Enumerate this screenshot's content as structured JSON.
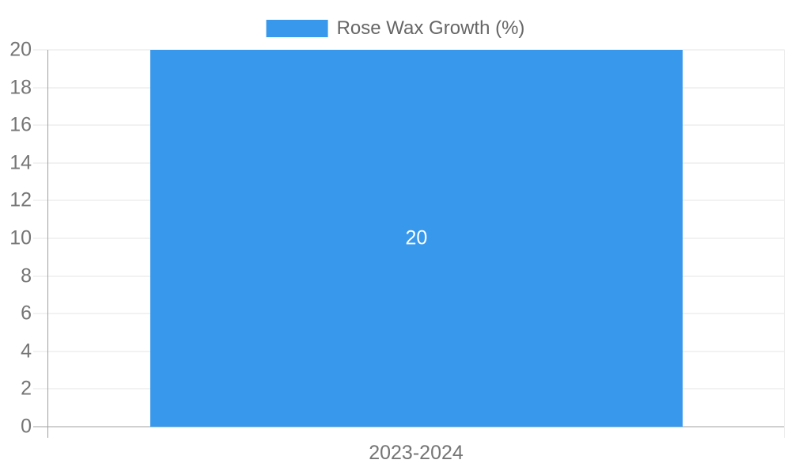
{
  "legend": {
    "label": "Rose Wax Growth (%)"
  },
  "chart_data": {
    "type": "bar",
    "title": "",
    "categories": [
      "2023-2024"
    ],
    "series": [
      {
        "name": "Rose Wax Growth (%)",
        "values": [
          20
        ]
      }
    ],
    "values": [
      20
    ],
    "bar_value_labels": [
      "20"
    ],
    "xlabel": "",
    "ylabel": "",
    "ylim": [
      0,
      20
    ],
    "yticks": [
      0,
      2,
      4,
      6,
      8,
      10,
      12,
      14,
      16,
      18,
      20
    ],
    "grid": true,
    "legend_position": "top",
    "colors": {
      "bar": "#3898ec",
      "grid": "#e6e6e6",
      "axis": "#a0a0a0",
      "tick_text": "#757575",
      "legend_text": "#666666",
      "bar_label_text": "#ffffff"
    }
  }
}
